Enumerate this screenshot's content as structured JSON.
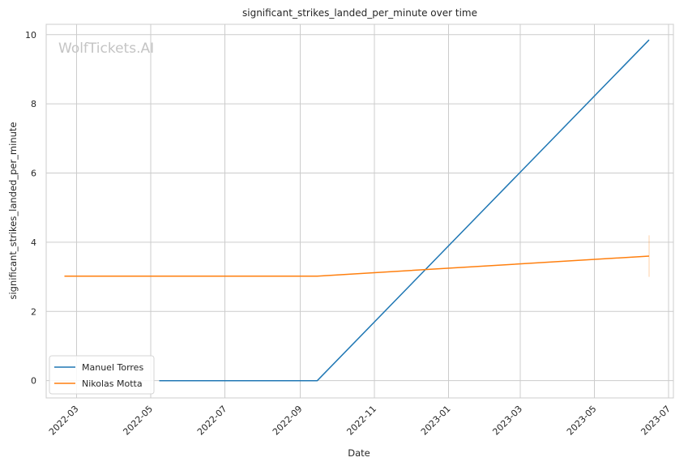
{
  "chart_data": {
    "type": "line",
    "title": "significant_strikes_landed_per_minute over time",
    "xlabel": "Date",
    "ylabel": "significant_strikes_landed_per_minute",
    "watermark": "WolfTickets.AI",
    "xlim": [
      "2022-02-04",
      "2023-07-05"
    ],
    "ylim": [
      -0.5,
      10.3
    ],
    "x_ticks": [
      "2022-03",
      "2022-05",
      "2022-07",
      "2022-09",
      "2022-11",
      "2023-01",
      "2023-03",
      "2023-05",
      "2023-07"
    ],
    "y_ticks": [
      0,
      2,
      4,
      6,
      8,
      10
    ],
    "grid": true,
    "legend_position": "lower-left",
    "series": [
      {
        "name": "Manuel Torres",
        "color": "#1f77b4",
        "points": [
          {
            "x": "2022-05-08",
            "y": 0
          },
          {
            "x": "2022-09-15",
            "y": 0
          },
          {
            "x": "2023-06-15",
            "y": 9.85
          }
        ]
      },
      {
        "name": "Nikolas Motta",
        "color": "#ff7f0e",
        "points": [
          {
            "x": "2022-02-19",
            "y": 3.02
          },
          {
            "x": "2022-09-15",
            "y": 3.02
          },
          {
            "x": "2023-06-15",
            "y": 3.6
          }
        ],
        "error_band": {
          "x": "2023-06-15",
          "low": 3.0,
          "high": 4.2
        }
      }
    ]
  }
}
